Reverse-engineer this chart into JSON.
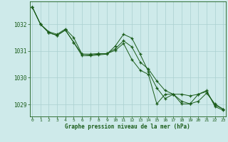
{
  "title": "Graphe pression niveau de la mer (hPa)",
  "bg_color": "#ceeaea",
  "grid_color": "#aad0d0",
  "line_color": "#1a5c1a",
  "xlim": [
    -0.3,
    23.3
  ],
  "ylim": [
    1028.55,
    1032.85
  ],
  "yticks": [
    1029,
    1030,
    1031,
    1032
  ],
  "xticks": [
    0,
    1,
    2,
    3,
    4,
    5,
    6,
    7,
    8,
    9,
    10,
    11,
    12,
    13,
    14,
    15,
    16,
    17,
    18,
    19,
    20,
    21,
    22,
    23
  ],
  "series1_x": [
    0,
    1,
    2,
    3,
    4,
    5,
    6,
    7,
    8,
    9,
    10,
    11,
    12,
    13,
    14,
    15,
    16,
    17,
    18,
    19,
    20,
    21,
    22,
    23
  ],
  "series1_y": [
    1032.65,
    1032.0,
    1031.72,
    1031.62,
    1031.82,
    1031.5,
    1030.88,
    1030.88,
    1030.9,
    1030.9,
    1031.08,
    1031.38,
    1031.15,
    1030.58,
    1030.32,
    1029.88,
    1029.52,
    1029.38,
    1029.38,
    1029.32,
    1029.38,
    1029.48,
    1028.98,
    1028.82
  ],
  "series2_x": [
    0,
    1,
    2,
    3,
    4,
    5,
    6,
    7,
    8,
    9,
    10,
    11,
    12,
    13,
    14,
    15,
    16,
    17,
    18,
    19,
    20,
    21,
    22,
    23
  ],
  "series2_y": [
    1032.65,
    1032.0,
    1031.68,
    1031.58,
    1031.78,
    1031.32,
    1030.88,
    1030.85,
    1030.88,
    1030.9,
    1031.02,
    1031.28,
    1030.68,
    1030.28,
    1030.12,
    1029.02,
    1029.38,
    1029.38,
    1029.12,
    1029.02,
    1029.38,
    1029.52,
    1028.92,
    1028.78
  ],
  "series3_x": [
    0,
    1,
    2,
    3,
    4,
    5,
    6,
    7,
    8,
    9,
    10,
    11,
    12,
    13,
    14,
    15,
    16,
    17,
    18,
    19,
    20,
    21,
    22,
    23
  ],
  "series3_y": [
    1032.65,
    1032.0,
    1031.68,
    1031.58,
    1031.78,
    1031.32,
    1030.82,
    1030.82,
    1030.85,
    1030.88,
    1031.18,
    1031.62,
    1031.48,
    1030.88,
    1030.22,
    1029.62,
    1029.22,
    1029.38,
    1029.02,
    1029.02,
    1029.12,
    1029.42,
    1029.02,
    1028.82
  ]
}
